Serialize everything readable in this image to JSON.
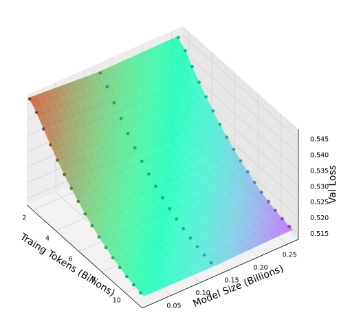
{
  "chart_data": {
    "type": "surface3d",
    "xlabel": "Traing Tokens (Billions)",
    "ylabel": "Model Size (Billions)",
    "zlabel": "Val Loss",
    "x_ticks": [
      "2",
      "4",
      "6",
      "8",
      "10"
    ],
    "y_ticks": [
      "0.05",
      "0.10",
      "0.15",
      "0.20",
      "0.25"
    ],
    "z_ticks": [
      "0.515",
      "0.520",
      "0.525",
      "0.530",
      "0.535",
      "0.540",
      "0.545"
    ],
    "x_range": [
      1.5,
      11.5
    ],
    "y_range": [
      0.0,
      0.27
    ],
    "z_range": [
      0.513,
      0.548
    ],
    "colormap": "rainbow",
    "grid": true,
    "surface_corner_values": {
      "tokens_min_size_min": 0.547,
      "tokens_min_size_max": 0.545,
      "tokens_max_size_min": 0.5165,
      "tokens_max_size_max": 0.5175
    },
    "scatter_series": [
      {
        "model_size": 0.003,
        "points": [
          {
            "tokens": 1.6,
            "loss": 0.5468
          },
          {
            "tokens": 2.2,
            "loss": 0.5445
          },
          {
            "tokens": 2.8,
            "loss": 0.5412
          },
          {
            "tokens": 3.4,
            "loss": 0.5381
          },
          {
            "tokens": 4.0,
            "loss": 0.5352
          },
          {
            "tokens": 4.6,
            "loss": 0.5326
          },
          {
            "tokens": 5.2,
            "loss": 0.5302
          },
          {
            "tokens": 5.8,
            "loss": 0.528
          },
          {
            "tokens": 6.4,
            "loss": 0.526
          },
          {
            "tokens": 7.0,
            "loss": 0.5242
          },
          {
            "tokens": 7.6,
            "loss": 0.5226
          },
          {
            "tokens": 8.2,
            "loss": 0.5212
          },
          {
            "tokens": 8.8,
            "loss": 0.5199
          },
          {
            "tokens": 9.4,
            "loss": 0.5188
          },
          {
            "tokens": 10.0,
            "loss": 0.5179
          },
          {
            "tokens": 10.6,
            "loss": 0.5172
          },
          {
            "tokens": 11.2,
            "loss": 0.5166
          }
        ]
      },
      {
        "model_size": 0.125,
        "points": [
          {
            "tokens": 1.6,
            "loss": 0.5452
          },
          {
            "tokens": 2.2,
            "loss": 0.5428
          },
          {
            "tokens": 2.8,
            "loss": 0.5396
          },
          {
            "tokens": 3.4,
            "loss": 0.5366
          },
          {
            "tokens": 4.0,
            "loss": 0.5338
          },
          {
            "tokens": 4.6,
            "loss": 0.5312
          },
          {
            "tokens": 5.2,
            "loss": 0.5289
          },
          {
            "tokens": 5.8,
            "loss": 0.5268
          },
          {
            "tokens": 6.4,
            "loss": 0.5249
          },
          {
            "tokens": 7.0,
            "loss": 0.5232
          },
          {
            "tokens": 7.6,
            "loss": 0.5217
          },
          {
            "tokens": 8.2,
            "loss": 0.5204
          },
          {
            "tokens": 8.8,
            "loss": 0.5193
          },
          {
            "tokens": 9.4,
            "loss": 0.5183
          },
          {
            "tokens": 10.0,
            "loss": 0.5175
          },
          {
            "tokens": 10.6,
            "loss": 0.5168
          },
          {
            "tokens": 11.2,
            "loss": 0.5163
          }
        ]
      },
      {
        "model_size": 0.26,
        "points": [
          {
            "tokens": 1.6,
            "loss": 0.5455
          },
          {
            "tokens": 2.2,
            "loss": 0.5433
          },
          {
            "tokens": 2.8,
            "loss": 0.5402
          },
          {
            "tokens": 3.4,
            "loss": 0.5372
          },
          {
            "tokens": 4.0,
            "loss": 0.5345
          },
          {
            "tokens": 4.6,
            "loss": 0.532
          },
          {
            "tokens": 5.2,
            "loss": 0.5297
          },
          {
            "tokens": 5.8,
            "loss": 0.5276
          },
          {
            "tokens": 6.4,
            "loss": 0.5257
          },
          {
            "tokens": 7.0,
            "loss": 0.524
          },
          {
            "tokens": 7.6,
            "loss": 0.5225
          },
          {
            "tokens": 8.2,
            "loss": 0.5211
          },
          {
            "tokens": 8.8,
            "loss": 0.5199
          },
          {
            "tokens": 9.4,
            "loss": 0.5189
          },
          {
            "tokens": 10.0,
            "loss": 0.5181
          },
          {
            "tokens": 10.6,
            "loss": 0.5174
          },
          {
            "tokens": 11.2,
            "loss": 0.5169
          }
        ]
      }
    ]
  }
}
